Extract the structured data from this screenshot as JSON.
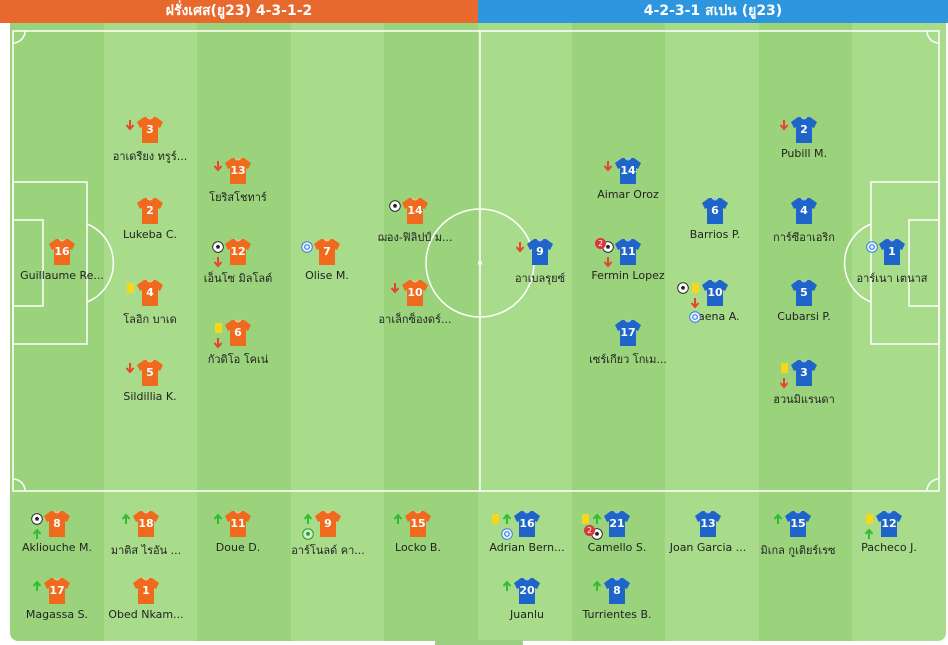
{
  "header": {
    "home_title": "ฝรั่งเศส(ยู23) 4-3-1-2",
    "away_title": "4-2-3-1 สเปน (ยู23)"
  },
  "colors": {
    "home_header": "#e8692e",
    "away_header": "#2d96de",
    "home_shirt": "#f06a1d",
    "away_shirt": "#1f64c8",
    "pitch_light": "#a8dc8a",
    "pitch_dark": "#9bd37c",
    "line": "#ffffff"
  },
  "home_starters": [
    {
      "number": "16",
      "name": "Guillaume Re...",
      "events": [
        "none"
      ]
    },
    {
      "number": "3",
      "name": "อาเดรียง ทรูร์...",
      "events": [
        "sub-out-arrow"
      ]
    },
    {
      "number": "2",
      "name": "Lukeba C.",
      "events": [
        "none"
      ]
    },
    {
      "number": "4",
      "name": "โลอิก บาเด",
      "events": [
        "yellow-card"
      ]
    },
    {
      "number": "5",
      "name": "Sildillia K.",
      "events": [
        "sub-out-arrow"
      ]
    },
    {
      "number": "13",
      "name": "โยริสโชทาร์",
      "events": [
        "sub-out-arrow"
      ]
    },
    {
      "number": "12",
      "name": "เอ็นโซ มิลโลต์",
      "events": [
        "goal-ball",
        "sub-out-arrow"
      ]
    },
    {
      "number": "6",
      "name": "กัวดิโอ โคเน่",
      "events": [
        "yellow-card",
        "sub-out-arrow"
      ]
    },
    {
      "number": "7",
      "name": "Olise M.",
      "events": [
        "assist"
      ]
    },
    {
      "number": "14",
      "name": "ฌอง-ฟิลิปป์ ม...",
      "events": [
        "goal-ball"
      ]
    },
    {
      "number": "10",
      "name": "อาเล็กซ็องดร์...",
      "events": [
        "sub-out-arrow"
      ]
    }
  ],
  "away_starters": [
    {
      "number": "9",
      "name": "อาเบลรุยซ์",
      "events": [
        "sub-out-arrow"
      ]
    },
    {
      "number": "14",
      "name": "Aimar Oroz",
      "events": [
        "sub-out-arrow"
      ]
    },
    {
      "number": "11",
      "name": "Fermin Lopez",
      "events": [
        "brace-ball",
        "sub-out-arrow"
      ]
    },
    {
      "number": "17",
      "name": "เซร์เกียว โกเม...",
      "events": [
        "none"
      ]
    },
    {
      "number": "6",
      "name": "Barrios P.",
      "events": [
        "none"
      ]
    },
    {
      "number": "10",
      "name": "Baena A.",
      "events": [
        "yellow-card",
        "sub-out-arrow",
        "goal-ball",
        "assist"
      ]
    },
    {
      "number": "2",
      "name": "Pubill M.",
      "events": [
        "sub-out-arrow"
      ]
    },
    {
      "number": "4",
      "name": "การ์ซีอาเอริก",
      "events": [
        "none"
      ]
    },
    {
      "number": "5",
      "name": "Cubarsi P.",
      "events": [
        "none"
      ]
    },
    {
      "number": "3",
      "name": "ฮวนมิแรนดา",
      "events": [
        "yellow-card",
        "sub-out-arrow"
      ]
    },
    {
      "number": "1",
      "name": "อาร์เนา เตนาส",
      "events": [
        "assist"
      ]
    }
  ],
  "home_subs": [
    {
      "number": "8",
      "name": "Akliouche M.",
      "events": [
        "goal-ball",
        "sub-in-arrow"
      ]
    },
    {
      "number": "18",
      "name": "มาติส ไรอัน ...",
      "events": [
        "sub-in-arrow"
      ]
    },
    {
      "number": "11",
      "name": "Doue D.",
      "events": [
        "sub-in-arrow"
      ]
    },
    {
      "number": "9",
      "name": "อาร์โนลด์ คา...",
      "events": [
        "sub-in-arrow",
        "own-goal"
      ]
    },
    {
      "number": "15",
      "name": "Locko B.",
      "events": [
        "sub-in-arrow"
      ]
    },
    {
      "number": "17",
      "name": "Magassa S.",
      "events": [
        "sub-in-arrow"
      ]
    },
    {
      "number": "1",
      "name": "Obed Nkam...",
      "events": [
        "none"
      ]
    }
  ],
  "away_subs": [
    {
      "number": "16",
      "name": "Adrian Bern...",
      "events": [
        "sub-in-arrow",
        "assist",
        "yellow-card"
      ]
    },
    {
      "number": "21",
      "name": "Camello S.",
      "events": [
        "sub-in-arrow",
        "brace-ball",
        "yellow-card"
      ]
    },
    {
      "number": "13",
      "name": "Joan Garcia ...",
      "events": [
        "none"
      ]
    },
    {
      "number": "15",
      "name": "มิเกล กูเติยร์เรซ",
      "events": [
        "sub-in-arrow"
      ]
    },
    {
      "number": "12",
      "name": "Pacheco J.",
      "events": [
        "yellow-card",
        "sub-in-arrow"
      ]
    },
    {
      "number": "20",
      "name": "Juanlu",
      "events": [
        "sub-in-arrow"
      ]
    },
    {
      "number": "8",
      "name": "Turrientes B.",
      "events": [
        "sub-in-arrow"
      ]
    }
  ],
  "badges": {
    "brace_count": "2"
  }
}
